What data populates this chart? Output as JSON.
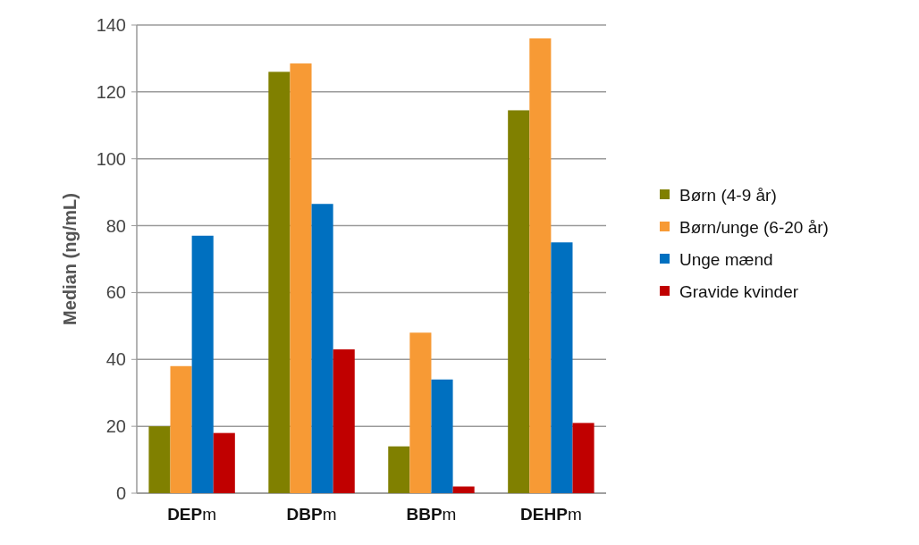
{
  "chart_data": {
    "type": "bar",
    "ylabel": "Median (ng/mL)",
    "categories": [
      "DEPm",
      "DBPm",
      "BBPm",
      "DEHPm"
    ],
    "series": [
      {
        "name": "Børn (4-9 år)",
        "color": "#808000",
        "values": [
          20,
          126,
          14,
          114.5
        ]
      },
      {
        "name": "Børn/unge (6-20 år)",
        "color": "#f79a35",
        "values": [
          38,
          128.5,
          48,
          136
        ]
      },
      {
        "name": "Unge mænd",
        "color": "#0070c0",
        "values": [
          77,
          86.5,
          34,
          75
        ]
      },
      {
        "name": "Gravide kvinder",
        "color": "#c00000",
        "values": [
          18,
          43,
          2,
          21
        ]
      }
    ],
    "ylim": [
      0,
      140
    ],
    "yticks": [
      0,
      20,
      40,
      60,
      80,
      100,
      120,
      140
    ],
    "grid": "y",
    "legend": "right"
  }
}
